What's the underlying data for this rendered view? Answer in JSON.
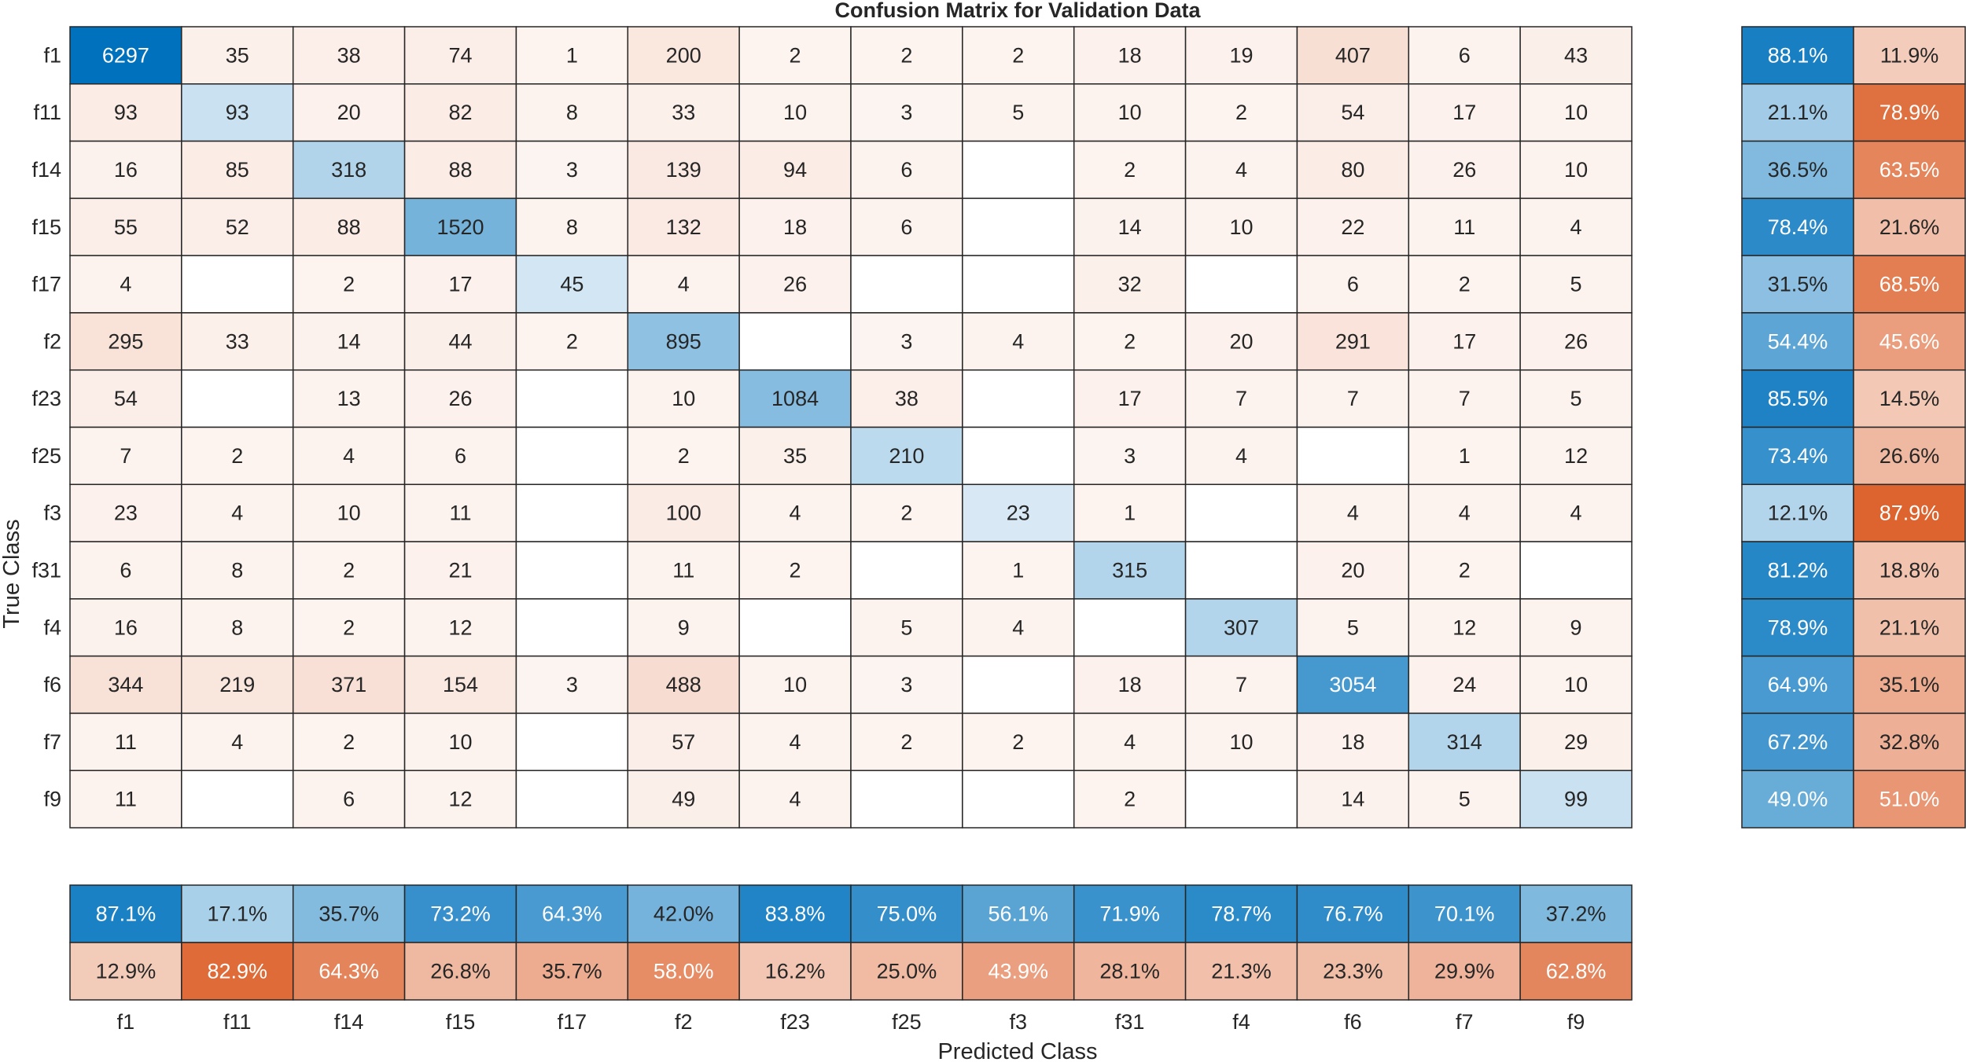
{
  "chart_data": {
    "type": "heatmap",
    "title": "Confusion Matrix for Validation Data",
    "xlabel": "Predicted Class",
    "ylabel": "True Class",
    "classes": [
      "f1",
      "f11",
      "f14",
      "f15",
      "f17",
      "f2",
      "f23",
      "f25",
      "f3",
      "f31",
      "f4",
      "f6",
      "f7",
      "f9"
    ],
    "matrix": [
      [
        6297,
        35,
        38,
        74,
        1,
        200,
        2,
        2,
        2,
        18,
        19,
        407,
        6,
        43
      ],
      [
        93,
        93,
        20,
        82,
        8,
        33,
        10,
        3,
        5,
        10,
        2,
        54,
        17,
        10
      ],
      [
        16,
        85,
        318,
        88,
        3,
        139,
        94,
        6,
        null,
        2,
        4,
        80,
        26,
        10
      ],
      [
        55,
        52,
        88,
        1520,
        8,
        132,
        18,
        6,
        null,
        14,
        10,
        22,
        11,
        4
      ],
      [
        4,
        null,
        2,
        17,
        45,
        4,
        26,
        null,
        null,
        32,
        null,
        6,
        2,
        5
      ],
      [
        295,
        33,
        14,
        44,
        2,
        895,
        null,
        3,
        4,
        2,
        20,
        291,
        17,
        26
      ],
      [
        54,
        null,
        13,
        26,
        null,
        10,
        1084,
        38,
        null,
        17,
        7,
        7,
        7,
        5
      ],
      [
        7,
        2,
        4,
        6,
        null,
        2,
        35,
        210,
        null,
        3,
        4,
        null,
        1,
        12
      ],
      [
        23,
        4,
        10,
        11,
        null,
        100,
        4,
        2,
        23,
        1,
        null,
        4,
        4,
        4
      ],
      [
        6,
        8,
        2,
        21,
        null,
        11,
        2,
        null,
        1,
        315,
        null,
        20,
        2,
        null
      ],
      [
        16,
        8,
        2,
        12,
        null,
        9,
        null,
        5,
        4,
        null,
        307,
        5,
        12,
        9
      ],
      [
        344,
        219,
        371,
        154,
        3,
        488,
        10,
        3,
        null,
        18,
        7,
        3054,
        24,
        10
      ],
      [
        11,
        4,
        2,
        10,
        null,
        57,
        4,
        2,
        2,
        4,
        10,
        18,
        314,
        29
      ],
      [
        11,
        null,
        6,
        12,
        null,
        49,
        4,
        null,
        null,
        2,
        null,
        14,
        5,
        99
      ]
    ],
    "row_summary": {
      "correct": [
        "88.1%",
        "21.1%",
        "36.5%",
        "78.4%",
        "31.5%",
        "54.4%",
        "85.5%",
        "73.4%",
        "12.1%",
        "81.2%",
        "78.9%",
        "64.9%",
        "67.2%",
        "49.0%"
      ],
      "incorrect": [
        "11.9%",
        "78.9%",
        "63.5%",
        "21.6%",
        "68.5%",
        "45.6%",
        "14.5%",
        "26.6%",
        "87.9%",
        "18.8%",
        "21.1%",
        "35.1%",
        "32.8%",
        "51.0%"
      ]
    },
    "column_summary": {
      "correct": [
        "87.1%",
        "17.1%",
        "35.7%",
        "73.2%",
        "64.3%",
        "42.0%",
        "83.8%",
        "75.0%",
        "56.1%",
        "71.9%",
        "78.7%",
        "76.7%",
        "70.1%",
        "37.2%"
      ],
      "incorrect": [
        "12.9%",
        "82.9%",
        "64.3%",
        "26.8%",
        "35.7%",
        "58.0%",
        "16.2%",
        "25.0%",
        "43.9%",
        "28.1%",
        "21.3%",
        "23.3%",
        "29.9%",
        "62.8%"
      ]
    },
    "colors": {
      "correct": "#0072bd",
      "incorrect": "#d95319",
      "background": "#ffffff",
      "grid": "#262626",
      "text_dark": "#262626",
      "text_light": "#ffffff"
    }
  }
}
